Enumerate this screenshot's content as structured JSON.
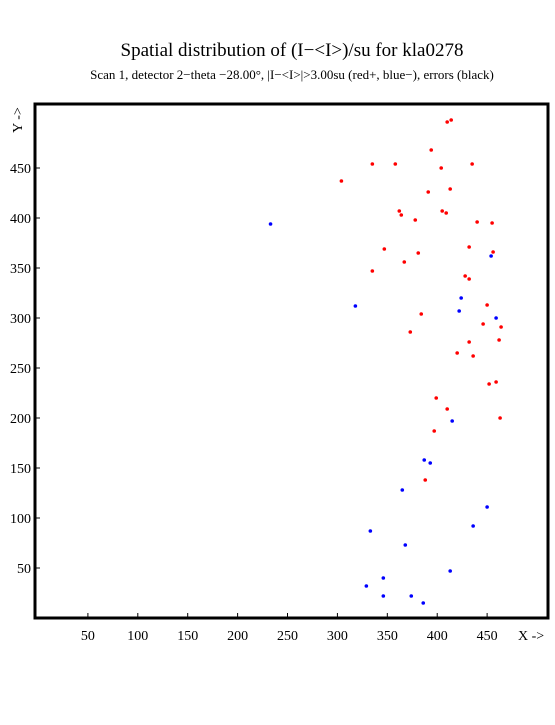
{
  "chart_data": {
    "type": "scatter",
    "title": "Spatial distribution of (I−<I>)/su for kla0278",
    "subtitle": "Scan  1, detector 2−theta −28.00°, |I−<I>|>3.00su (red+, blue−), errors (black)",
    "x_label": "X ->",
    "y_label": "Y ->",
    "xlim": [
      -3,
      511
    ],
    "ylim": [
      0,
      514
    ],
    "xticks": [
      50,
      100,
      150,
      200,
      250,
      300,
      350,
      400,
      450
    ],
    "yticks": [
      50,
      100,
      150,
      200,
      250,
      300,
      350,
      400,
      450
    ],
    "series": [
      {
        "color": "#ff0000",
        "x": [
          410,
          414,
          394,
          335,
          358,
          404,
          435,
          304,
          413,
          391,
          362,
          364,
          405,
          409,
          378,
          440,
          455,
          347,
          432,
          381,
          367,
          335,
          428,
          432,
          450,
          384,
          446,
          464,
          373,
          432,
          462,
          436,
          420,
          459,
          452,
          399,
          410,
          397,
          463,
          388,
          456
        ],
        "y": [
          496,
          498,
          468,
          454,
          454,
          450,
          454,
          437,
          429,
          426,
          407,
          403,
          407,
          405,
          398,
          396,
          395,
          369,
          371,
          365,
          356,
          347,
          342,
          339,
          313,
          304,
          294,
          291,
          286,
          276,
          278,
          262,
          265,
          236,
          234,
          220,
          209,
          187,
          200,
          138,
          366
        ]
      },
      {
        "color": "#0000ff",
        "x": [
          233,
          454,
          318,
          424,
          422,
          459,
          415,
          387,
          393,
          365,
          450,
          436,
          333,
          368,
          413,
          346,
          329,
          346,
          374,
          386
        ],
        "y": [
          394,
          362,
          312,
          320,
          307,
          300,
          197,
          158,
          155,
          128,
          111,
          92,
          87,
          73,
          47,
          40,
          32,
          22,
          22,
          15
        ]
      }
    ]
  }
}
